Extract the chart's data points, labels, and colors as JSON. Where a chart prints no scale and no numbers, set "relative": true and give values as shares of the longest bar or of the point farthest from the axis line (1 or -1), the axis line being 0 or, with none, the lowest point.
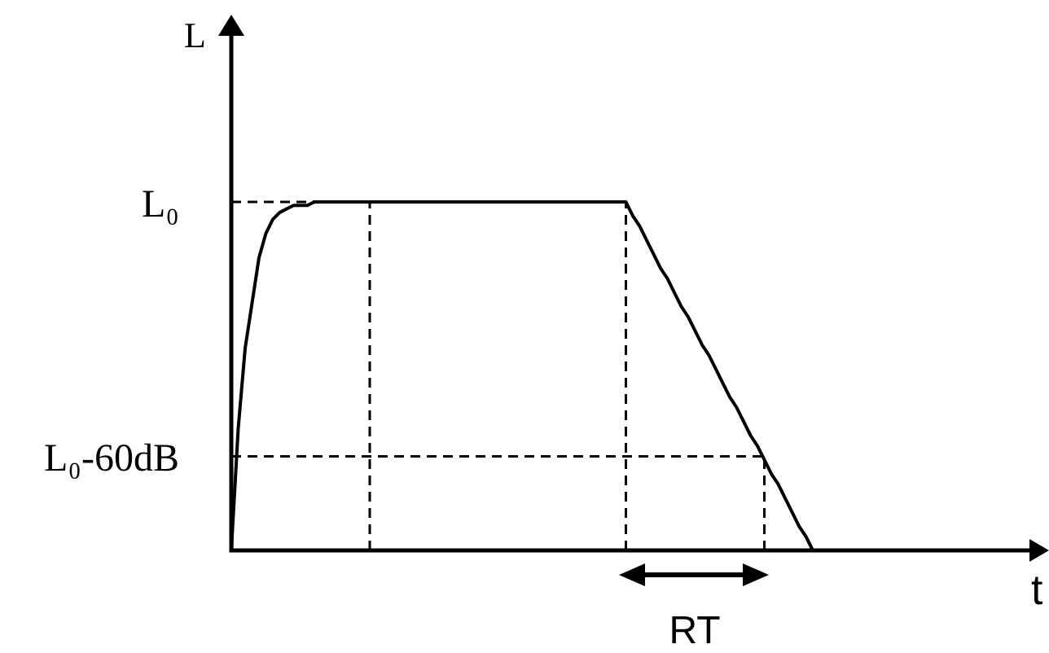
{
  "chart_data": {
    "type": "line",
    "xlabel": "t",
    "ylabel": "L",
    "relative": true,
    "marker": "none",
    "line_style": "solid",
    "categories": [
      null,
      null,
      null,
      null,
      null,
      null,
      null,
      null,
      null,
      null,
      null,
      null,
      null,
      null,
      null,
      null,
      null,
      null,
      null,
      null,
      null,
      null,
      null,
      null,
      null,
      null,
      null,
      null,
      null,
      null,
      null,
      null,
      null,
      null,
      null,
      null,
      null,
      null,
      null,
      null,
      null,
      null,
      null,
      null,
      null,
      null,
      null,
      null,
      null,
      null,
      null,
      null,
      null,
      null,
      null,
      null,
      null,
      null,
      null,
      null,
      null,
      null,
      null,
      null,
      null,
      null,
      null,
      null,
      null,
      null,
      null,
      null,
      null,
      null,
      null,
      null,
      null,
      null,
      null,
      null,
      null,
      null,
      null,
      null,
      null,
      null,
      null,
      null,
      null,
      null,
      null,
      null,
      null,
      null,
      null,
      null,
      null,
      null,
      null,
      null,
      null,
      null,
      null,
      null,
      null,
      null,
      null,
      null,
      null,
      null,
      null,
      null,
      null,
      null,
      null,
      null
    ],
    "series": [
      {
        "color": "#000000",
        "values": [
          0,
          0.35,
          0.58,
          0.71,
          0.84,
          0.91,
          0.95,
          0.97,
          0.98,
          0.99,
          0.99,
          0.99,
          1,
          1,
          1,
          1,
          1,
          1,
          1,
          1,
          1,
          1,
          1,
          1,
          1,
          1,
          1,
          1,
          1,
          1,
          1,
          1,
          1,
          1,
          1,
          1,
          1,
          1,
          1,
          1,
          1,
          1,
          1,
          1,
          1,
          1,
          1,
          1,
          1,
          1,
          1,
          1,
          1,
          1,
          1,
          1,
          1,
          1,
          0.96,
          0.93,
          0.89,
          0.85,
          0.81,
          0.78,
          0.74,
          0.7,
          0.67,
          0.63,
          0.59,
          0.56,
          0.52,
          0.48,
          0.44,
          0.41,
          0.37,
          0.33,
          0.3,
          0.26,
          0.22,
          0.19,
          0.15,
          0.11,
          0.07,
          0.04,
          0,
          null,
          null,
          null,
          null,
          null,
          null,
          null,
          null,
          null,
          null,
          null,
          null,
          null,
          null,
          null,
          null,
          null,
          null,
          null,
          null,
          null,
          null,
          null,
          null,
          null,
          null,
          null,
          null,
          null,
          null,
          null
        ]
      },
      {
        "name": "L₀",
        "color": "#000000",
        "line_style": "dashed",
        "values": [
          1,
          1,
          1,
          1,
          1,
          1,
          1,
          1,
          1,
          1,
          1,
          1,
          1,
          1,
          1,
          1,
          1,
          1,
          1,
          1,
          1,
          null,
          null,
          null,
          null,
          null,
          null,
          null,
          null,
          null,
          null,
          null,
          null,
          null,
          null,
          null,
          null,
          null,
          null,
          null,
          null,
          null,
          null,
          null,
          null,
          null,
          null,
          null,
          null,
          null,
          null,
          null,
          null,
          null,
          null,
          null,
          null,
          null,
          null,
          null,
          null,
          null,
          null,
          null,
          null,
          null,
          null,
          null,
          null,
          null,
          null,
          null,
          null,
          null,
          null,
          null,
          null,
          null,
          null,
          null,
          null,
          null,
          null,
          null,
          null,
          null,
          null,
          null,
          null,
          null,
          null,
          null,
          null,
          null,
          null,
          null,
          null,
          null,
          null,
          null,
          null,
          null,
          null,
          null,
          null,
          null,
          null,
          null,
          null,
          null,
          null,
          null,
          null,
          null,
          null,
          null
        ]
      },
      {
        "name": "L₀-60dB",
        "color": "#000000",
        "line_style": "dashed",
        "values": [
          0.27,
          0.27,
          0.27,
          0.27,
          0.27,
          0.27,
          0.27,
          0.27,
          0.27,
          0.27,
          0.27,
          0.27,
          0.27,
          0.27,
          0.27,
          0.27,
          0.27,
          0.27,
          0.27,
          0.27,
          0.27,
          0.27,
          0.27,
          0.27,
          0.27,
          0.27,
          0.27,
          0.27,
          0.27,
          0.27,
          0.27,
          0.27,
          0.27,
          0.27,
          0.27,
          0.27,
          0.27,
          0.27,
          0.27,
          0.27,
          0.27,
          0.27,
          0.27,
          0.27,
          0.27,
          0.27,
          0.27,
          0.27,
          0.27,
          0.27,
          0.27,
          0.27,
          0.27,
          0.27,
          0.27,
          0.27,
          0.27,
          0.27,
          0.27,
          0.27,
          0.27,
          0.27,
          0.27,
          0.27,
          0.27,
          0.27,
          0.27,
          0.27,
          0.27,
          0.27,
          0.27,
          0.27,
          0.27,
          0.27,
          0.27,
          0.27,
          0.27,
          0.27,
          null,
          null,
          null,
          null,
          null,
          null,
          null,
          null,
          null,
          null,
          null,
          null,
          null,
          null,
          null,
          null,
          null,
          null,
          null,
          null,
          null,
          null,
          null,
          null,
          null,
          null,
          null,
          null,
          null,
          null,
          null,
          null,
          null,
          null,
          null,
          null,
          null,
          null
        ]
      }
    ],
    "annotations": [
      "RT"
    ]
  }
}
